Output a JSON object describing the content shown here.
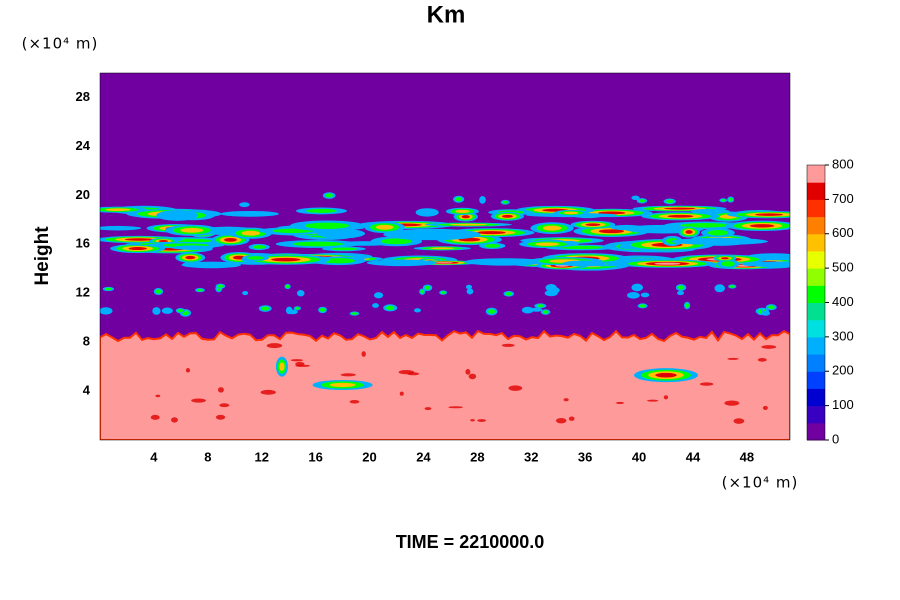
{
  "chart_data": {
    "type": "contour",
    "title": "Km",
    "ylabel": "Height",
    "xunit": "(×10⁴ m)",
    "yunit": "(×10⁴ m)",
    "footer": "TIME = 2210000.0",
    "xlim": [
      0,
      51.2
    ],
    "xticks": [
      4,
      8,
      12,
      16,
      20,
      24,
      28,
      32,
      36,
      40,
      44,
      48
    ],
    "ylim": [
      0,
      30
    ],
    "yticks": [
      4,
      8,
      12,
      16,
      20,
      24,
      28
    ],
    "clim": [
      0,
      800
    ],
    "cticks": [
      0,
      100,
      200,
      300,
      400,
      500,
      600,
      700,
      800
    ],
    "cmap": [
      "#7000a0",
      "#3800c0",
      "#0000d0",
      "#0040ff",
      "#0080ff",
      "#00b0ff",
      "#00e0e0",
      "#00e090",
      "#00ff00",
      "#90ff00",
      "#e8ff00",
      "#ffc000",
      "#ff8000",
      "#ff3000",
      "#e00000",
      "#ff9a9a"
    ]
  }
}
